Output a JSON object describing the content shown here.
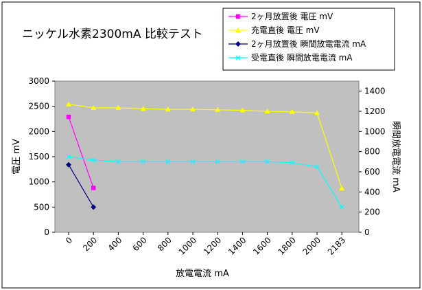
{
  "chart_data": {
    "type": "line",
    "title": "ニッケル水素2300mA 比較テスト",
    "xlabel": "放電電流 mA",
    "ylabel": "電圧 mV",
    "y2label": "瞬間放電電流 mA",
    "categories": [
      "0",
      "200",
      "400",
      "600",
      "800",
      "1000",
      "1200",
      "1400",
      "1600",
      "1800",
      "2000",
      "2183"
    ],
    "ylim": [
      0,
      3000
    ],
    "yticks": [
      "0",
      "500",
      "1000",
      "1500",
      "2000",
      "2500",
      "3000"
    ],
    "y2lim": [
      0,
      1500
    ],
    "y2ticks": [
      "0",
      "200",
      "400",
      "600",
      "800",
      "1000",
      "1200",
      "1400"
    ],
    "plot_background": "#c0c0c0",
    "grid": false,
    "legend_position": "top-right",
    "series": [
      {
        "name": "2ヶ月放置後 電圧 mV",
        "axis": "left",
        "color": "#ff00ff",
        "marker": "square",
        "values": [
          2290,
          880,
          null,
          null,
          null,
          null,
          null,
          null,
          null,
          null,
          null,
          null
        ]
      },
      {
        "name": "充電直後 電圧 mV",
        "axis": "left",
        "color": "#ffff00",
        "marker": "triangle",
        "values": [
          2540,
          2470,
          2470,
          2450,
          2440,
          2440,
          2430,
          2420,
          2400,
          2390,
          2370,
          870
        ]
      },
      {
        "name": "2ヶ月放置後 瞬間放電電流 mA",
        "axis": "right",
        "color": "#000080",
        "marker": "diamond",
        "values": [
          670,
          250,
          null,
          null,
          null,
          null,
          null,
          null,
          null,
          null,
          null,
          null
        ]
      },
      {
        "name": "受電直後 瞬間放電電流 mA",
        "axis": "right",
        "color": "#00ffff",
        "marker": "x",
        "values": [
          750,
          715,
          700,
          700,
          700,
          700,
          700,
          700,
          700,
          690,
          650,
          250
        ]
      }
    ]
  }
}
